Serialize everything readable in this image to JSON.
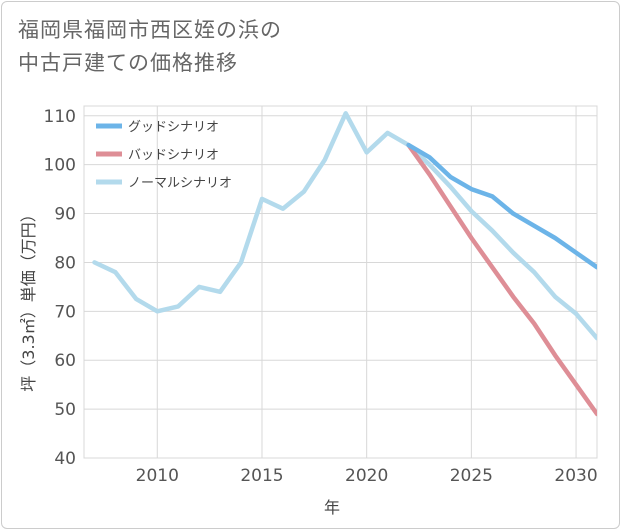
{
  "title": {
    "line1": "福岡県福岡市西区姪の浜の",
    "line2": "中古戸建ての価格推移"
  },
  "chart_data": {
    "type": "line",
    "title": "福岡県福岡市西区姪の浜の中古戸建ての価格推移",
    "xlabel": "年",
    "ylabel": "坪（3.3㎡）単価（万円）",
    "xlim": [
      2006.5,
      2031
    ],
    "ylim": [
      40,
      112
    ],
    "x_ticks": [
      2010,
      2015,
      2020,
      2025,
      2030
    ],
    "y_ticks": [
      40,
      50,
      60,
      70,
      80,
      90,
      100,
      110
    ],
    "grid": true,
    "legend_position": "top-left",
    "series": [
      {
        "name": "グッドシナリオ",
        "color": "#6cb4e8",
        "x": [
          2022,
          2023,
          2024,
          2025,
          2026,
          2027,
          2028,
          2029,
          2030,
          2031
        ],
        "y": [
          104,
          101.5,
          97.5,
          95,
          93.5,
          90,
          87.5,
          85,
          82,
          79
        ]
      },
      {
        "name": "バッドシナリオ",
        "color": "#de8e96",
        "x": [
          2022,
          2023,
          2024,
          2025,
          2026,
          2027,
          2028,
          2029,
          2030,
          2031
        ],
        "y": [
          104,
          98,
          91.5,
          85,
          79,
          73,
          67.5,
          61,
          55,
          49
        ]
      },
      {
        "name": "ノーマルシナリオ",
        "color": "#b3daec",
        "x": [
          2007,
          2008,
          2009,
          2010,
          2011,
          2012,
          2013,
          2014,
          2015,
          2016,
          2017,
          2018,
          2019,
          2020,
          2021,
          2022,
          2023,
          2024,
          2025,
          2026,
          2027,
          2028,
          2029,
          2030,
          2031
        ],
        "y": [
          80,
          78,
          72.5,
          70,
          71,
          75,
          74,
          80,
          93,
          91,
          94.5,
          101,
          110.5,
          102.5,
          106.5,
          104,
          100,
          95.5,
          90.5,
          86.5,
          82,
          78,
          73,
          69.5,
          64.5
        ]
      }
    ]
  }
}
